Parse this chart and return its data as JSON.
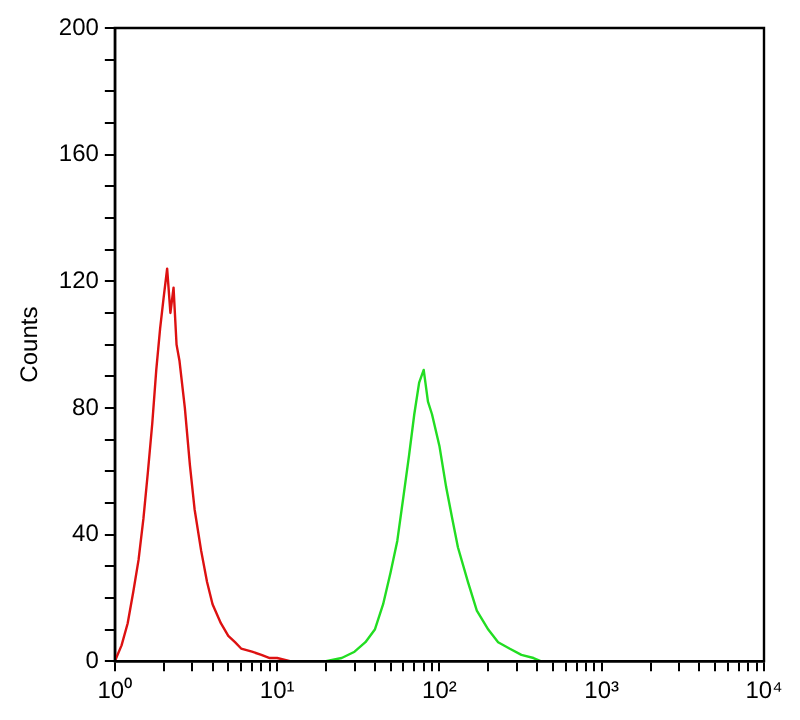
{
  "chart_data": {
    "type": "line",
    "ylabel": "Counts",
    "log": "x",
    "grid": false,
    "legend": false,
    "marker": "none",
    "line_style": "solid",
    "xlim": [
      1,
      10000
    ],
    "ylim": [
      0,
      200
    ],
    "xticks": [
      {
        "value": 1,
        "label": "10⁰"
      },
      {
        "value": 2,
        "label": null
      },
      {
        "value": 3,
        "label": null
      },
      {
        "value": 4,
        "label": null
      },
      {
        "value": 5,
        "label": null
      },
      {
        "value": 6,
        "label": null
      },
      {
        "value": 7,
        "label": null
      },
      {
        "value": 8,
        "label": null
      },
      {
        "value": 9,
        "label": null
      },
      {
        "value": 10,
        "label": "10¹"
      },
      {
        "value": 20,
        "label": null
      },
      {
        "value": 30,
        "label": null
      },
      {
        "value": 40,
        "label": null
      },
      {
        "value": 50,
        "label": null
      },
      {
        "value": 60,
        "label": null
      },
      {
        "value": 70,
        "label": null
      },
      {
        "value": 80,
        "label": null
      },
      {
        "value": 90,
        "label": null
      },
      {
        "value": 100,
        "label": "10²"
      },
      {
        "value": 200,
        "label": null
      },
      {
        "value": 300,
        "label": null
      },
      {
        "value": 400,
        "label": null
      },
      {
        "value": 500,
        "label": null
      },
      {
        "value": 600,
        "label": null
      },
      {
        "value": 700,
        "label": null
      },
      {
        "value": 800,
        "label": null
      },
      {
        "value": 900,
        "label": null
      },
      {
        "value": 1000,
        "label": "10³"
      },
      {
        "value": 2000,
        "label": null
      },
      {
        "value": 3000,
        "label": null
      },
      {
        "value": 4000,
        "label": null
      },
      {
        "value": 5000,
        "label": null
      },
      {
        "value": 6000,
        "label": null
      },
      {
        "value": 7000,
        "label": null
      },
      {
        "value": 8000,
        "label": null
      },
      {
        "value": 9000,
        "label": null
      },
      {
        "value": 10000,
        "label": "10⁴"
      }
    ],
    "yticks": [
      0,
      {
        "value": 10,
        "label": null
      },
      {
        "value": 20,
        "label": null
      },
      {
        "value": 30,
        "label": null
      },
      40,
      {
        "value": 50,
        "label": null
      },
      {
        "value": 60,
        "label": null
      },
      {
        "value": 70,
        "label": null
      },
      80,
      {
        "value": 90,
        "label": null
      },
      {
        "value": 100,
        "label": null
      },
      {
        "value": 110,
        "label": null
      },
      120,
      {
        "value": 130,
        "label": null
      },
      {
        "value": 140,
        "label": null
      },
      {
        "value": 150,
        "label": null
      },
      160,
      {
        "value": 170,
        "label": null
      },
      {
        "value": 180,
        "label": null
      },
      {
        "value": 190,
        "label": null
      },
      200
    ],
    "series": [
      {
        "color": "#dd1111",
        "x": [
          1.0,
          1.1,
          1.2,
          1.3,
          1.4,
          1.5,
          1.6,
          1.7,
          1.8,
          1.9,
          2.0,
          2.1,
          2.2,
          2.3,
          2.4,
          2.5,
          2.7,
          2.9,
          3.1,
          3.4,
          3.7,
          4.0,
          4.5,
          5.0,
          5.5,
          6,
          7,
          8,
          9,
          10,
          12
        ],
        "values": [
          0,
          5,
          12,
          22,
          32,
          45,
          60,
          75,
          92,
          105,
          115,
          124,
          110,
          118,
          100,
          95,
          80,
          62,
          48,
          35,
          25,
          18,
          12,
          8,
          6,
          4,
          3,
          2,
          1,
          1,
          0
        ]
      },
      {
        "color": "#22dd22",
        "x": [
          20,
          25,
          30,
          35,
          40,
          45,
          50,
          55,
          60,
          65,
          70,
          75,
          80,
          85,
          90,
          100,
          110,
          120,
          130,
          150,
          170,
          200,
          230,
          270,
          320,
          380,
          420
        ],
        "values": [
          0,
          1,
          3,
          6,
          10,
          18,
          28,
          38,
          52,
          65,
          78,
          88,
          92,
          82,
          78,
          68,
          55,
          45,
          36,
          25,
          16,
          10,
          6,
          4,
          2,
          1,
          0
        ]
      }
    ]
  }
}
